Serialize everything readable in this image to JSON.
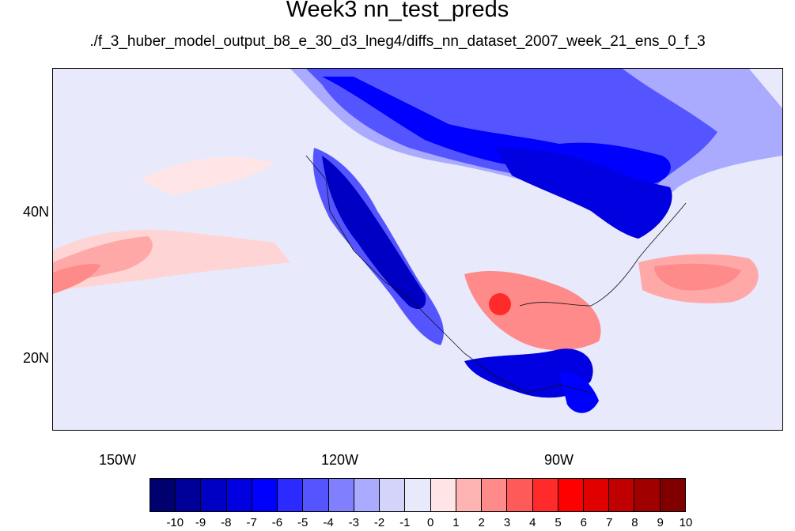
{
  "title": "Week3 nn_test_preds",
  "subtitle": "./f_3_huber_model_output_b8_e_30_d3_lneg4/diffs_nn_dataset_2007_week_21_ens_0_f_3",
  "axes": {
    "lat_labels": [
      "40N",
      "20N"
    ],
    "lon_labels": [
      "150W",
      "120W",
      "90W"
    ]
  },
  "colorbar": {
    "labels": [
      "-10",
      "-9",
      "-8",
      "-7",
      "-6",
      "-5",
      "-4",
      "-3",
      "-2",
      "-1",
      "0",
      "1",
      "2",
      "3",
      "4",
      "5",
      "6",
      "7",
      "8",
      "9",
      "10"
    ],
    "colors": [
      "#00006e",
      "#000099",
      "#0000c4",
      "#0000e0",
      "#0000ff",
      "#2b2bff",
      "#5555ff",
      "#8080ff",
      "#aaaaff",
      "#d4d4fa",
      "#e8e9fb",
      "#ffe5e5",
      "#ffb4b4",
      "#ff8a8a",
      "#ff5a5a",
      "#ff2a2a",
      "#ff0000",
      "#e00000",
      "#c00000",
      "#a00000",
      "#800000"
    ]
  },
  "colors": {
    "background_field": "#e8eafc",
    "coastline": "#111111"
  }
}
